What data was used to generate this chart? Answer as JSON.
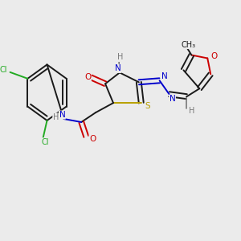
{
  "background_color": "#ebebeb",
  "bond_color": "#1a1a1a",
  "colors": {
    "O": "#cc0000",
    "N": "#0000cc",
    "S": "#b8a000",
    "Cl": "#22aa22",
    "H": "#777777",
    "C": "#1a1a1a"
  },
  "figsize": [
    3.0,
    3.0
  ],
  "dpi": 100
}
